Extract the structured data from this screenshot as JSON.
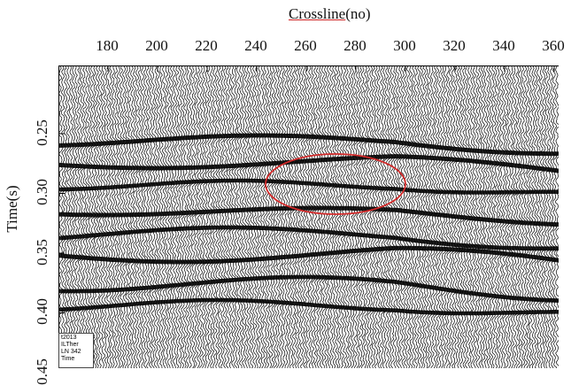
{
  "x_axis": {
    "title_main": "Crossline",
    "title_suffix": "(no)",
    "ticks": [
      "180",
      "200",
      "220",
      "240",
      "260",
      "280",
      "300",
      "320",
      "340",
      "360"
    ]
  },
  "y_axis": {
    "title": "Time(s)",
    "ticks": [
      "0.25",
      "0.30",
      "0.35",
      "0.40",
      "0.45"
    ]
  },
  "info_box": {
    "lines": [
      "t2013",
      "ILTher",
      "LN 342",
      "Time"
    ]
  },
  "annotation": {
    "shape": "ellipse",
    "color": "#d42a2a",
    "description": ""
  },
  "colors": {
    "trace": "#000000",
    "background": "#ffffff"
  }
}
